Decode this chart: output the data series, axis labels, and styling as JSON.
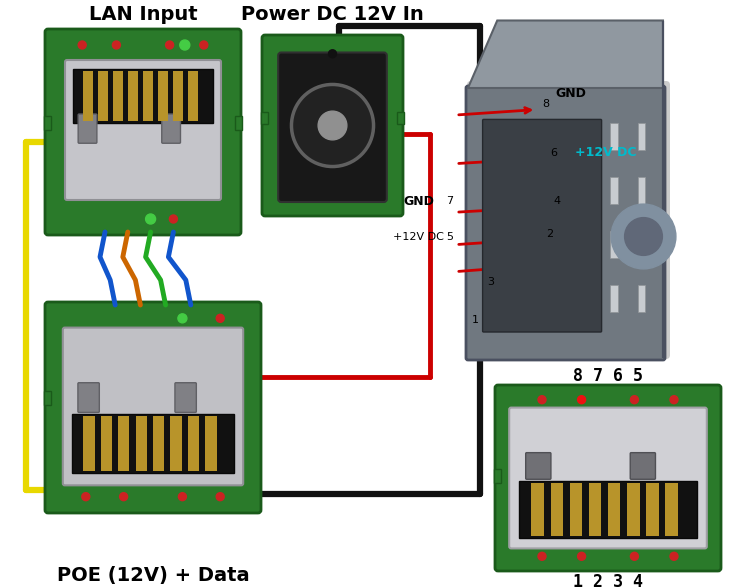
{
  "bg_color": "#ffffff",
  "lan_input_label": "LAN Input",
  "power_label": "Power DC 12V In",
  "poe_label": "POE (12V) + Data",
  "pin_labels_top": "8 7 6 5",
  "pin_labels_bottom": "1 2 3 4",
  "gnd_label": "GND",
  "plus12v_label": "+12V DC",
  "gnd2_label": "GND",
  "plus12v2_label": "+12V DC",
  "green_board": "#2a7a2a",
  "green_board_edge": "#1a5a1a",
  "wire_yellow": "#e8d800",
  "wire_red": "#cc0000",
  "wire_blue": "#1155cc",
  "wire_orange": "#cc6600",
  "wire_green": "#22aa22",
  "wire_black": "#111111",
  "connector_gray": "#c8c8cc",
  "connector_dark": "#222228",
  "pin_red": "#cc2222",
  "annotation_red": "#cc0000",
  "annotation_cyan": "#00bbcc",
  "metal_body": "#7a7a8a",
  "metal_light": "#9a9aaa",
  "metal_dark": "#5a5a6a"
}
